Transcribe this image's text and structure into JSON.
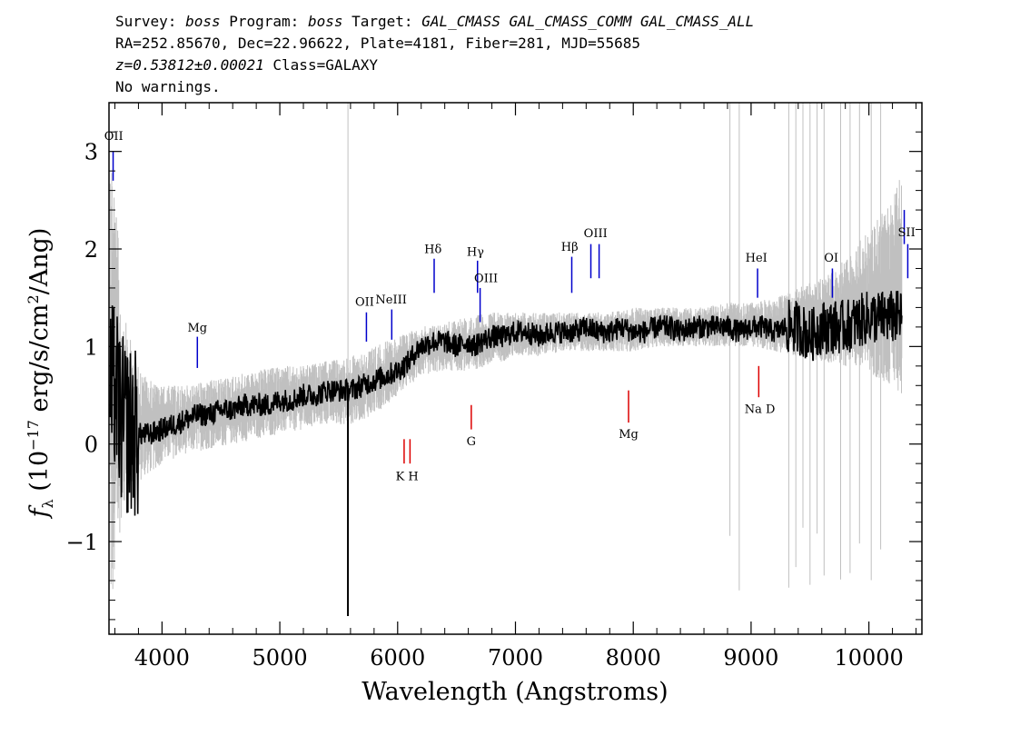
{
  "header": {
    "line1": {
      "survey_label": "Survey:",
      "survey": "boss",
      "program_label": "Program:",
      "program": "boss",
      "target_label": "Target:",
      "target": "GAL_CMASS GAL_CMASS_COMM GAL_CMASS_ALL"
    },
    "line2": "RA=252.85670, Dec=22.96622, Plate=4181, Fiber=281, MJD=55685",
    "line3": {
      "z": "z=0.53812±0.00021",
      "class": "Class=GALAXY"
    },
    "line4": "No warnings."
  },
  "chart_data": {
    "type": "line",
    "xlabel": "Wavelength (Angstroms)",
    "ylabel_html": "f<sub>λ</sub> (10<sup>-17</sup> erg/s/cm<sup>2</sup>/Ang)",
    "ylabel": "fλ (10^-17 erg/s/cm^2/Ang)",
    "xlim": [
      3550,
      10450
    ],
    "ylim": [
      -1.95,
      3.5
    ],
    "xticks": [
      4000,
      5000,
      6000,
      7000,
      8000,
      9000,
      10000
    ],
    "xtick_labels": [
      "4000",
      "5000",
      "6000",
      "7000",
      "8000",
      "9000",
      "10000"
    ],
    "yticks": [
      -1,
      0,
      1,
      2,
      3
    ],
    "ytick_labels": [
      "−1",
      "0",
      "1",
      "2",
      "3"
    ],
    "series": [
      {
        "role": "spectrum",
        "color": "#000000",
        "x": [
          3560,
          3600,
          3650,
          3700,
          3800,
          3900,
          4000,
          4100,
          4200,
          4300,
          4400,
          4500,
          4600,
          4700,
          4800,
          4900,
          5000,
          5100,
          5200,
          5300,
          5400,
          5500,
          5600,
          5700,
          5800,
          5900,
          6000,
          6050,
          6100,
          6150,
          6200,
          6300,
          6400,
          6500,
          6600,
          6650,
          6700,
          6800,
          6900,
          7000,
          7100,
          7200,
          7300,
          7400,
          7500,
          7600,
          7700,
          7800,
          7900,
          8000,
          8100,
          8200,
          8300,
          8400,
          8500,
          8600,
          8700,
          8800,
          8900,
          9000,
          9100,
          9200,
          9300,
          9400,
          9500,
          9600,
          9700,
          9800,
          9900,
          10000,
          10100,
          10200,
          10280
        ],
        "y": [
          0.5,
          0.6,
          0.25,
          0.15,
          0.1,
          0.1,
          0.15,
          0.2,
          0.25,
          0.3,
          0.3,
          0.35,
          0.35,
          0.4,
          0.4,
          0.4,
          0.45,
          0.45,
          0.5,
          0.5,
          0.55,
          0.55,
          0.55,
          0.6,
          0.65,
          0.7,
          0.75,
          0.8,
          0.85,
          0.95,
          1.0,
          1.05,
          1.05,
          1.0,
          1.05,
          1.0,
          1.05,
          1.1,
          1.1,
          1.15,
          1.15,
          1.1,
          1.15,
          1.15,
          1.15,
          1.2,
          1.15,
          1.15,
          1.2,
          1.15,
          1.15,
          1.2,
          1.2,
          1.15,
          1.2,
          1.2,
          1.2,
          1.2,
          1.15,
          1.2,
          1.2,
          1.15,
          1.2,
          1.2,
          1.1,
          1.2,
          1.2,
          1.2,
          1.25,
          1.3,
          1.3,
          1.3,
          1.3
        ]
      },
      {
        "role": "noise-envelope",
        "color": "#c0c0c0",
        "x": [
          3560,
          3600,
          3650,
          3700,
          3800,
          3900,
          4000,
          4200,
          4400,
          4600,
          4800,
          5000,
          5200,
          5400,
          5600,
          5800,
          6000,
          6200,
          6400,
          6600,
          6800,
          7000,
          7200,
          7400,
          7600,
          7800,
          8000,
          8200,
          8400,
          8600,
          8800,
          9000,
          9200,
          9400,
          9600,
          9800,
          10000,
          10200,
          10280
        ],
        "y_low": [
          -1.95,
          -1.6,
          -0.8,
          -0.5,
          -0.4,
          -0.3,
          -0.2,
          -0.1,
          -0.05,
          0.0,
          0.05,
          0.1,
          0.15,
          0.2,
          0.2,
          0.3,
          0.5,
          0.7,
          0.75,
          0.75,
          0.8,
          0.9,
          0.9,
          0.95,
          0.95,
          0.95,
          0.95,
          1.0,
          1.0,
          1.0,
          1.0,
          1.0,
          0.95,
          0.9,
          0.85,
          0.8,
          0.7,
          0.6,
          0.5
        ],
        "y_high": [
          3.5,
          2.8,
          1.6,
          1.2,
          0.8,
          0.65,
          0.6,
          0.6,
          0.65,
          0.7,
          0.75,
          0.8,
          0.8,
          0.85,
          0.9,
          1.0,
          1.1,
          1.2,
          1.25,
          1.3,
          1.35,
          1.35,
          1.35,
          1.35,
          1.35,
          1.35,
          1.4,
          1.4,
          1.4,
          1.4,
          1.45,
          1.45,
          1.5,
          1.6,
          1.7,
          1.9,
          2.2,
          2.5,
          2.8
        ]
      }
    ],
    "emission_lines": [
      {
        "label": "OII",
        "x": 3585,
        "y_bottom": 2.7,
        "y_top": 3.0
      },
      {
        "label": "Mg",
        "x": 4300,
        "y_bottom": 0.78,
        "y_top": 1.1
      },
      {
        "label": "OII",
        "x": 5735,
        "y_bottom": 1.05,
        "y_top": 1.35
      },
      {
        "label": "NeIII",
        "x": 5950,
        "y_bottom": 1.07,
        "y_top": 1.38
      },
      {
        "label": "Hδ",
        "x": 6310,
        "y_bottom": 1.55,
        "y_top": 1.9
      },
      {
        "label": "Hγ",
        "x": 6678,
        "y_bottom": 1.55,
        "y_top": 1.88
      },
      {
        "label": "OIII",
        "x": 6700,
        "y_bottom": 1.25,
        "y_top": 1.6
      },
      {
        "label": "Hβ",
        "x": 7478,
        "y_bottom": 1.55,
        "y_top": 1.92
      },
      {
        "label": "OIII",
        "x": 7640,
        "y_bottom": 1.7,
        "y_top": 2.05
      },
      {
        "label": "OIII",
        "x": 7710,
        "y_bottom": 1.7,
        "y_top": 2.05
      },
      {
        "label": "HeI",
        "x": 9055,
        "y_bottom": 1.5,
        "y_top": 1.8
      },
      {
        "label": "OI",
        "x": 9690,
        "y_bottom": 1.5,
        "y_top": 1.8
      },
      {
        "label": "SII",
        "x": 10300,
        "y_bottom": 2.05,
        "y_top": 2.4
      },
      {
        "label": "SII",
        "x": 10330,
        "y_bottom": 1.7,
        "y_top": 2.05
      }
    ],
    "emission_labels": [
      {
        "text": "OII",
        "x": 3590,
        "y": 3.12
      },
      {
        "text": "Mg",
        "x": 4300,
        "y": 1.15
      },
      {
        "text": "OII",
        "x": 5720,
        "y": 1.42
      },
      {
        "text": "NeIII",
        "x": 5945,
        "y": 1.44
      },
      {
        "text": "Hδ",
        "x": 6300,
        "y": 1.96
      },
      {
        "text": "Hγ",
        "x": 6660,
        "y": 1.93
      },
      {
        "text": "OIII",
        "x": 6750,
        "y": 1.66
      },
      {
        "text": "Hβ",
        "x": 7460,
        "y": 1.98
      },
      {
        "text": "OIII",
        "x": 7680,
        "y": 2.12
      },
      {
        "text": "HeI",
        "x": 9045,
        "y": 1.87
      },
      {
        "text": "OI",
        "x": 9680,
        "y": 1.87
      },
      {
        "text": "SII",
        "x": 10320,
        "y": 2.13
      }
    ],
    "absorption_lines": [
      {
        "label": "K",
        "x": 6055,
        "y_bottom": 0.05,
        "y_top": -0.2
      },
      {
        "label": "H",
        "x": 6105,
        "y_bottom": 0.05,
        "y_top": -0.2
      },
      {
        "label": "G",
        "x": 6625,
        "y_bottom": 0.4,
        "y_top": 0.15
      },
      {
        "label": "Mg",
        "x": 7960,
        "y_bottom": 0.55,
        "y_top": 0.22
      },
      {
        "label": "Na D",
        "x": 9065,
        "y_bottom": 0.8,
        "y_top": 0.48
      }
    ],
    "absorption_labels": [
      {
        "text": "K H",
        "x": 6080,
        "y": -0.37
      },
      {
        "text": "G",
        "x": 6625,
        "y": -0.01
      },
      {
        "text": "Mg",
        "x": 7960,
        "y": 0.06
      },
      {
        "text": "Na D",
        "x": 9075,
        "y": 0.32
      }
    ],
    "line_colors": {
      "emission": "#0000cc",
      "absorption": "#dd0000"
    },
    "grid": false
  }
}
